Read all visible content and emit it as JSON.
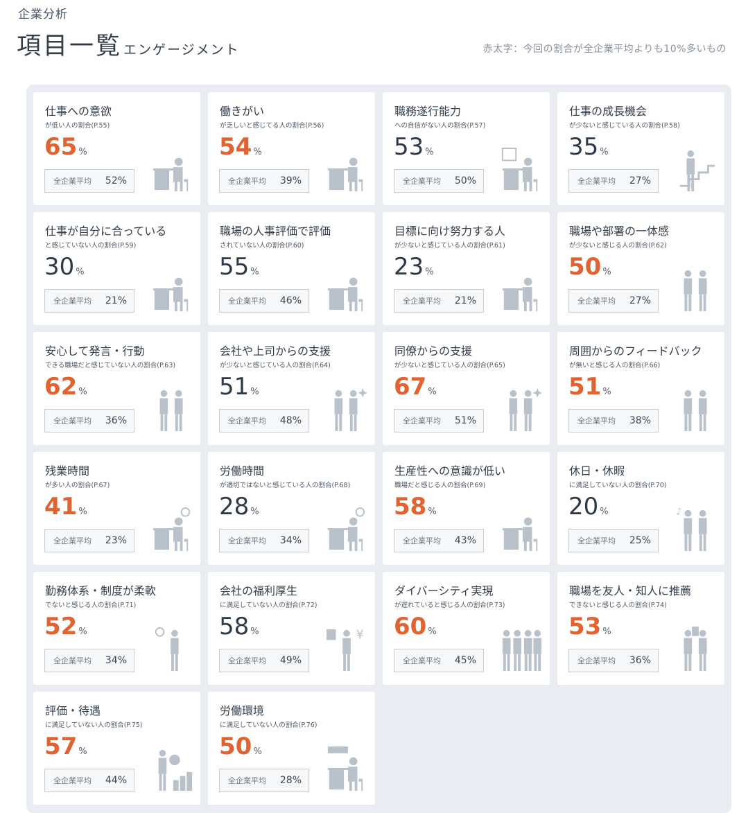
{
  "header": {
    "section_label": "企業分析",
    "title": "項目一覧",
    "subtitle": "エンゲージメント",
    "note": "赤太字：今回の割合が全企業平均よりも10%多いもの"
  },
  "colors": {
    "highlight": "#e06331",
    "normal": "#2f3a48",
    "panel_bg": "#e9ecf0",
    "illustration": "#b9c1ca"
  },
  "items": [
    {
      "title": "仕事への意欲",
      "sub": "が低い人の割合(P.55)",
      "value": "65",
      "unit": "%",
      "avg_label": "全企業平均",
      "avg": "52%",
      "high": true,
      "icon": "desk-worker-stress-icon"
    },
    {
      "title": "働きがい",
      "sub": "が乏しいと感じてる人の割合(P.56)",
      "value": "54",
      "unit": "%",
      "avg_label": "全企業平均",
      "avg": "39%",
      "high": true,
      "icon": "frustrated-worker-icon"
    },
    {
      "title": "職務遂行能力",
      "sub": "への自信がない人の割合(P.57)",
      "value": "53",
      "unit": "%",
      "avg_label": "全企業平均",
      "avg": "50%",
      "high": false,
      "icon": "worker-chart-icon"
    },
    {
      "title": "仕事の成長機会",
      "sub": "が少ないと感じている人の割合(P.58)",
      "value": "35",
      "unit": "%",
      "avg_label": "全企業平均",
      "avg": "27%",
      "high": false,
      "icon": "climbing-stairs-icon"
    },
    {
      "title": "仕事が自分に合っている",
      "sub": "と感じていない人の割合(P.59)",
      "value": "30",
      "unit": "%",
      "avg_label": "全企業平均",
      "avg": "21%",
      "high": false,
      "icon": "desk-worker-icon"
    },
    {
      "title": "職場の人事評価で評価",
      "sub": "されていない人の割合(P.60)",
      "value": "55",
      "unit": "%",
      "avg_label": "全企業平均",
      "avg": "46%",
      "high": false,
      "icon": "evaluation-document-icon"
    },
    {
      "title": "目標に向け努力する人",
      "sub": "が少ないと感じている人の割合(P.61)",
      "value": "23",
      "unit": "%",
      "avg_label": "全企業平均",
      "avg": "21%",
      "high": false,
      "icon": "tired-worker-icon"
    },
    {
      "title": "職場や部署の一体感",
      "sub": "が少ないと感じる人の割合(P.62)",
      "value": "50",
      "unit": "%",
      "avg_label": "全企業平均",
      "avg": "27%",
      "high": true,
      "icon": "two-people-icon"
    },
    {
      "title": "安心して発言・行動",
      "sub": "できる職場だと感じていない人の割合(P.63)",
      "value": "62",
      "unit": "%",
      "avg_label": "全企業平均",
      "avg": "36%",
      "high": true,
      "icon": "two-people-icon"
    },
    {
      "title": "会社や上司からの支援",
      "sub": "が少ないと感じている人の割合(P.64)",
      "value": "51",
      "unit": "%",
      "avg_label": "全企業平均",
      "avg": "48%",
      "high": false,
      "icon": "two-people-sparkle-icon"
    },
    {
      "title": "同僚からの支援",
      "sub": "が少ないと感じている人の割合(P.65)",
      "value": "67",
      "unit": "%",
      "avg_label": "全企業平均",
      "avg": "51%",
      "high": true,
      "icon": "two-people-sparkle-icon"
    },
    {
      "title": "周囲からのフィードバック",
      "sub": "が無いと感じる人の割合(P.66)",
      "value": "51",
      "unit": "%",
      "avg_label": "全企業平均",
      "avg": "38%",
      "high": true,
      "icon": "two-people-talk-icon"
    },
    {
      "title": "残業時間",
      "sub": "が多い人の割合(P.67)",
      "value": "41",
      "unit": "%",
      "avg_label": "全企業平均",
      "avg": "23%",
      "high": true,
      "icon": "overtime-clock-icon"
    },
    {
      "title": "労働時間",
      "sub": "が適切ではないと感じている人の割合(P.68)",
      "value": "28",
      "unit": "%",
      "avg_label": "全企業平均",
      "avg": "34%",
      "high": false,
      "icon": "desk-clock-icon"
    },
    {
      "title": "生産性への意識が低い",
      "sub": "職場だと感じる人の割合(P.69)",
      "value": "58",
      "unit": "%",
      "avg_label": "全企業平均",
      "avg": "43%",
      "high": true,
      "icon": "relaxing-worker-icon"
    },
    {
      "title": "休日・休暇",
      "sub": "に満足していない人の割合(P.70)",
      "value": "20",
      "unit": "%",
      "avg_label": "全企業平均",
      "avg": "25%",
      "high": false,
      "icon": "music-couple-icon"
    },
    {
      "title": "勤務体系・制度が柔軟",
      "sub": "でないと感じる人の割合(P.71)",
      "value": "52",
      "unit": "%",
      "avg_label": "全企業平均",
      "avg": "34%",
      "high": true,
      "icon": "worker-clock-icon"
    },
    {
      "title": "会社の福利厚生",
      "sub": "に満足していない人の割合(P.72)",
      "value": "58",
      "unit": "%",
      "avg_label": "全企業平均",
      "avg": "49%",
      "high": false,
      "icon": "welfare-yen-icon"
    },
    {
      "title": "ダイバーシティ実現",
      "sub": "が遅れていると感じる人の割合(P.73)",
      "value": "60",
      "unit": "%",
      "avg_label": "全企業平均",
      "avg": "45%",
      "high": true,
      "icon": "crowd-icon"
    },
    {
      "title": "職場を友人・知人に推薦",
      "sub": "できないと感じる人の割合(P.74)",
      "value": "53",
      "unit": "%",
      "avg_label": "全企業平均",
      "avg": "36%",
      "high": true,
      "icon": "recommend-building-icon"
    },
    {
      "title": "評価・待遇",
      "sub": "に満足していない人の割合(P.75)",
      "value": "57",
      "unit": "%",
      "avg_label": "全企業平均",
      "avg": "44%",
      "high": true,
      "icon": "money-bag-icon"
    },
    {
      "title": "労働環境",
      "sub": "に満足していない人の割合(P.76)",
      "value": "50",
      "unit": "%",
      "avg_label": "全企業平均",
      "avg": "28%",
      "high": true,
      "icon": "air-conditioner-desk-icon"
    }
  ]
}
